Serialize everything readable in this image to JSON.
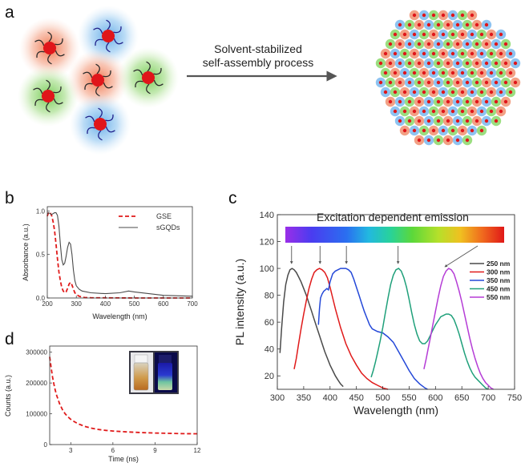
{
  "panels": {
    "a": {
      "label": "a",
      "caption_line1": "Solvent-stabilized",
      "caption_line2": "self-assembly process"
    },
    "b": {
      "label": "b"
    },
    "c": {
      "label": "c",
      "spectrum_title": "Excitation dependent emission"
    },
    "d": {
      "label": "d"
    }
  },
  "colors": {
    "red_core": "#e0151a",
    "glow_blue": "#79b8ea",
    "glow_green": "#7ed25a",
    "glow_orange": "#ef7a52",
    "gse": "#e01a1a",
    "sgqds": "#4a4a4a"
  },
  "chart_data": [
    {
      "id": "b",
      "type": "line",
      "title": "",
      "xlabel": "Wavelength (nm)",
      "ylabel": "Absorbance (a.u.)",
      "xlim": [
        200,
        700
      ],
      "ylim": [
        0,
        1.05
      ],
      "xticks": [
        200,
        300,
        400,
        500,
        600,
        700
      ],
      "yticks": [
        0.0,
        0.5,
        1.0
      ],
      "ytick_labels": [
        "0.0",
        "0.5",
        "1.0"
      ],
      "series": [
        {
          "name": "GSE",
          "color": "#e01a1a",
          "dash": "5,3",
          "width": 1.8,
          "x": [
            200,
            205,
            210,
            215,
            220,
            225,
            230,
            235,
            240,
            245,
            250,
            255,
            260,
            265,
            270,
            275,
            280,
            285,
            290,
            295,
            300,
            310,
            320,
            330,
            350,
            400,
            500,
            600,
            700
          ],
          "y": [
            0.94,
            0.99,
            0.98,
            0.95,
            0.88,
            0.78,
            0.62,
            0.45,
            0.3,
            0.2,
            0.12,
            0.08,
            0.06,
            0.07,
            0.11,
            0.16,
            0.18,
            0.15,
            0.1,
            0.06,
            0.04,
            0.02,
            0.01,
            0.005,
            0.003,
            0.002,
            0.0,
            0.0,
            0.0
          ]
        },
        {
          "name": "sGQDs",
          "color": "#4a4a4a",
          "dash": "",
          "width": 1.1,
          "x": [
            200,
            205,
            210,
            215,
            220,
            225,
            230,
            235,
            240,
            245,
            250,
            255,
            260,
            265,
            270,
            275,
            280,
            285,
            290,
            295,
            300,
            310,
            320,
            350,
            400,
            450,
            480,
            500,
            550,
            600,
            700
          ],
          "y": [
            0.97,
            0.98,
            0.97,
            0.96,
            0.97,
            0.98,
            0.98,
            0.95,
            0.83,
            0.62,
            0.44,
            0.38,
            0.4,
            0.48,
            0.58,
            0.64,
            0.62,
            0.5,
            0.32,
            0.2,
            0.14,
            0.1,
            0.08,
            0.06,
            0.05,
            0.06,
            0.08,
            0.07,
            0.05,
            0.03,
            0.02
          ]
        }
      ]
    },
    {
      "id": "c",
      "type": "line",
      "title": "Excitation dependent emission",
      "xlabel": "Wavelength (nm)",
      "ylabel": "PL intensity (a.u.)",
      "xlim": [
        300,
        750
      ],
      "ylim": [
        10,
        140
      ],
      "xticks": [
        300,
        350,
        400,
        450,
        500,
        550,
        600,
        650,
        700,
        750
      ],
      "yticks": [
        20,
        40,
        60,
        80,
        100,
        120,
        140
      ],
      "arrows_x": [
        327,
        381,
        431,
        529,
        627
      ],
      "series": [
        {
          "name": "250 nm",
          "color": "#4a4a4a",
          "x": [
            305,
            308,
            312,
            316,
            320,
            324,
            328,
            332,
            336,
            340,
            345,
            350,
            355,
            360,
            365,
            370,
            375,
            380,
            385,
            390,
            395,
            400,
            405,
            410,
            415,
            420,
            425
          ],
          "y": [
            37,
            55,
            75,
            88,
            95,
            99,
            100,
            99,
            97,
            94,
            90,
            85,
            80,
            74,
            68,
            62,
            56,
            50,
            44,
            38,
            33,
            28,
            24,
            20,
            17,
            14,
            12
          ]
        },
        {
          "name": "300 nm",
          "color": "#e01a1a",
          "x": [
            332,
            336,
            340,
            345,
            350,
            355,
            360,
            365,
            370,
            375,
            380,
            385,
            390,
            395,
            400,
            405,
            410,
            420,
            430,
            440,
            450,
            460,
            470,
            480,
            490,
            500,
            510
          ],
          "y": [
            25,
            33,
            43,
            55,
            66,
            76,
            85,
            92,
            97,
            99,
            100,
            99,
            97,
            93,
            86,
            78,
            70,
            56,
            44,
            35,
            28,
            22,
            18,
            15,
            13,
            11,
            10
          ]
        },
        {
          "name": "350 nm",
          "color": "#2448d8",
          "x": [
            378,
            380,
            382,
            385,
            388,
            391,
            394,
            397,
            400,
            405,
            410,
            415,
            420,
            425,
            430,
            435,
            440,
            445,
            450,
            455,
            460,
            465,
            470,
            475,
            480,
            490,
            500,
            510,
            520,
            530,
            540,
            550,
            560,
            570,
            580,
            585
          ],
          "y": [
            58,
            70,
            78,
            81,
            83,
            84,
            85,
            84,
            90,
            96,
            98,
            99,
            100,
            100,
            100,
            99,
            97,
            92,
            86,
            80,
            74,
            68,
            63,
            58,
            55,
            53,
            52,
            49,
            45,
            38,
            31,
            24,
            18,
            14,
            11,
            10
          ]
        },
        {
          "name": "450 nm",
          "color": "#1fa07a",
          "x": [
            478,
            482,
            486,
            490,
            495,
            500,
            505,
            510,
            515,
            520,
            525,
            530,
            535,
            540,
            545,
            550,
            555,
            560,
            565,
            570,
            575,
            580,
            585,
            590,
            595,
            600,
            605,
            610,
            615,
            620,
            625,
            630,
            635,
            640,
            645,
            650,
            655,
            660,
            665,
            670,
            675,
            680,
            685,
            690,
            695,
            700
          ],
          "y": [
            19,
            24,
            30,
            37,
            46,
            56,
            67,
            78,
            88,
            95,
            99,
            100,
            98,
            93,
            86,
            77,
            67,
            58,
            51,
            46,
            44,
            44,
            46,
            50,
            54,
            58,
            61,
            64,
            65,
            66,
            66,
            65,
            62,
            57,
            51,
            44,
            37,
            31,
            26,
            22,
            19,
            17,
            15,
            13,
            11,
            10
          ]
        },
        {
          "name": "550 nm",
          "color": "#b53cd6",
          "x": [
            578,
            582,
            586,
            590,
            595,
            600,
            605,
            610,
            615,
            620,
            625,
            630,
            635,
            640,
            645,
            650,
            655,
            660,
            665,
            670,
            675,
            680,
            685,
            690,
            695,
            700,
            705,
            710
          ],
          "y": [
            25,
            32,
            40,
            48,
            58,
            68,
            78,
            87,
            94,
            98,
            100,
            99,
            96,
            90,
            83,
            75,
            66,
            57,
            48,
            40,
            33,
            27,
            22,
            18,
            15,
            13,
            11,
            10
          ]
        }
      ]
    },
    {
      "id": "d",
      "type": "line",
      "title": "",
      "xlabel": "Time (ns)",
      "ylabel": "Counts (a.u.)",
      "xlim": [
        1.5,
        12
      ],
      "ylim": [
        0,
        320000
      ],
      "xticks": [
        3,
        6,
        9,
        12
      ],
      "yticks": [
        0,
        100000,
        200000,
        300000
      ],
      "series": [
        {
          "name": "decay",
          "color": "#e01a1a",
          "dash": "5,3",
          "x": [
            1.5,
            1.6,
            1.7,
            1.8,
            1.9,
            2.0,
            2.2,
            2.4,
            2.6,
            2.8,
            3.0,
            3.3,
            3.6,
            4.0,
            4.5,
            5.0,
            5.5,
            6.0,
            7.0,
            8.0,
            9.0,
            10.0,
            11.0,
            12.0
          ],
          "y": [
            285000,
            250000,
            220000,
            196000,
            176000,
            159000,
            133000,
            114000,
            100000,
            90000,
            82000,
            73000,
            66000,
            59000,
            53000,
            49000,
            46000,
            44000,
            41000,
            39000,
            37500,
            36500,
            35500,
            35000
          ]
        }
      ]
    }
  ]
}
